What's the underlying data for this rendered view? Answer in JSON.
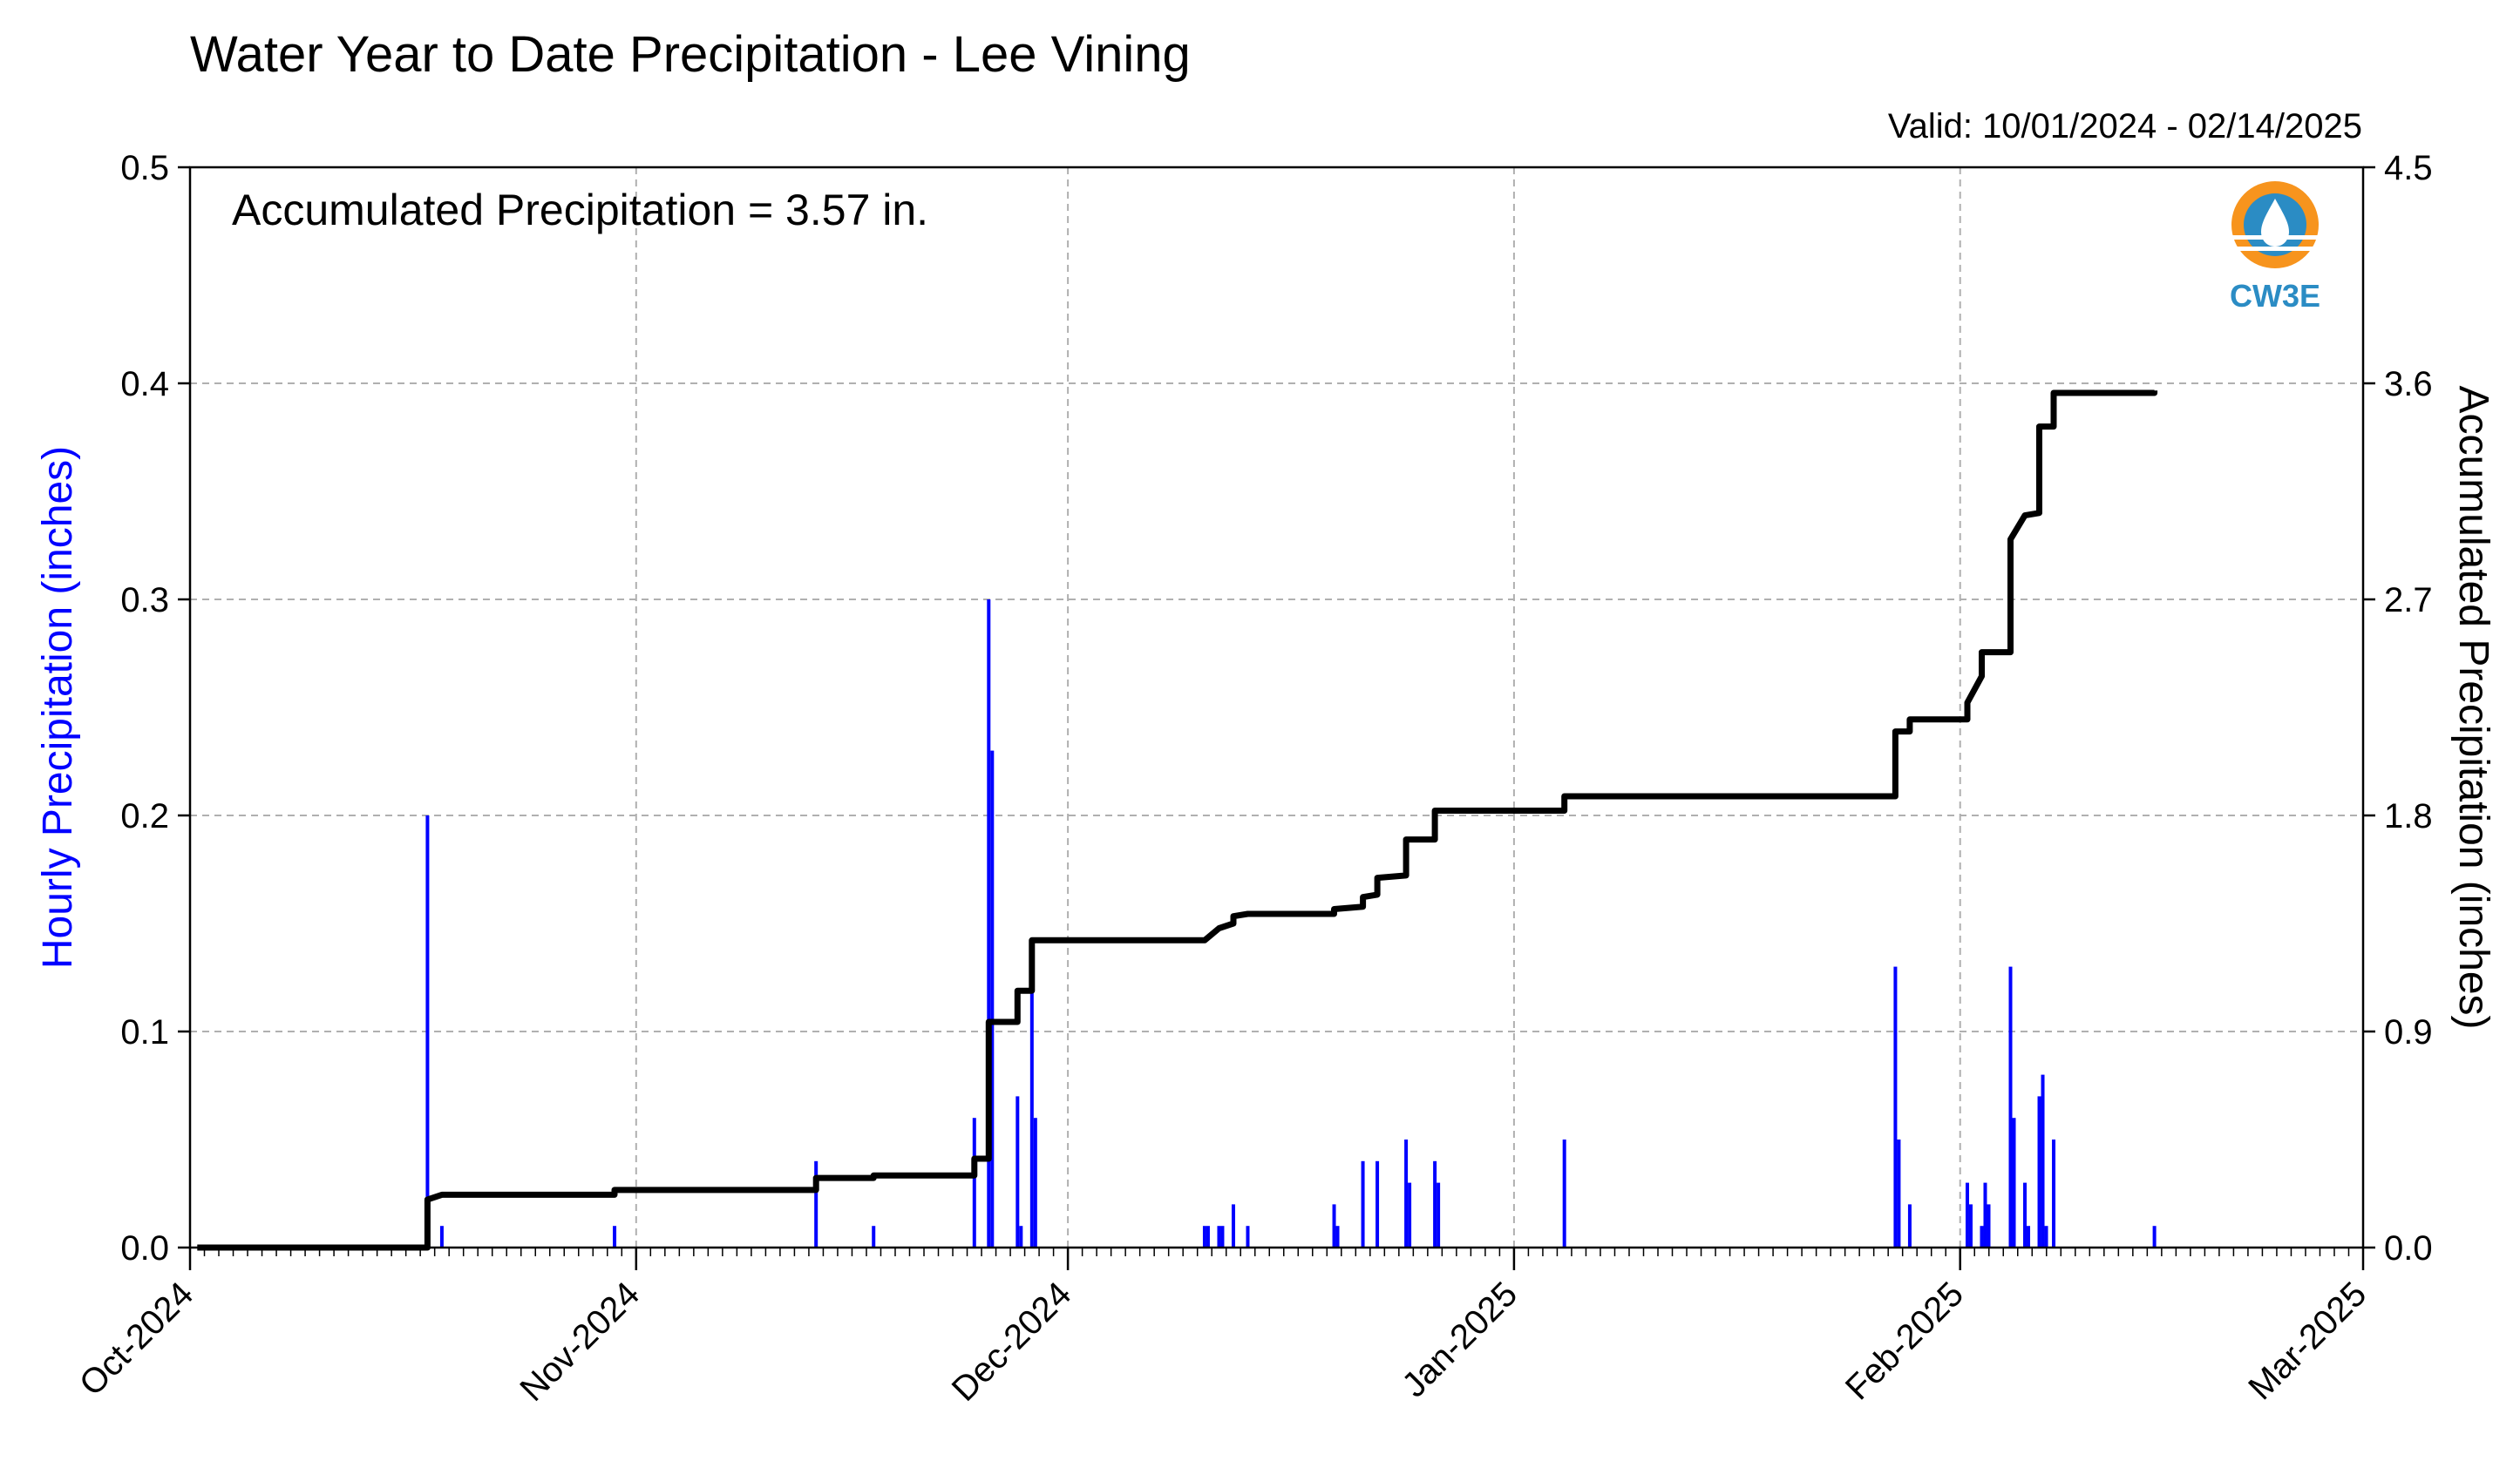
{
  "chart_data": {
    "type": "bar",
    "title": "Water Year to Date Precipitation - Lee Vining",
    "subtitle": "Valid: 10/01/2024 - 02/14/2025",
    "annotation": "Accumulated Precipitation = 3.57 in.",
    "logo_text": "CW3E",
    "ylabel_left": "Hourly Precipitation (inches)",
    "ylabel_right": "Accumulated Precipitation (inches)",
    "xlim": [
      "2024-10-01",
      "2025-03-01"
    ],
    "ylim_left": [
      0,
      0.5
    ],
    "ylim_right": [
      0,
      4.5
    ],
    "x_ticks": [
      {
        "date": "2024-10-01",
        "label": "Oct-2024"
      },
      {
        "date": "2024-11-01",
        "label": "Nov-2024"
      },
      {
        "date": "2024-12-01",
        "label": "Dec-2024"
      },
      {
        "date": "2025-01-01",
        "label": "Jan-2025"
      },
      {
        "date": "2025-02-01",
        "label": "Feb-2025"
      },
      {
        "date": "2025-03-01",
        "label": "Mar-2025"
      }
    ],
    "y_ticks_left": [
      "0.0",
      "0.1",
      "0.2",
      "0.3",
      "0.4",
      "0.5"
    ],
    "y_ticks_right": [
      "0.0",
      "0.9",
      "1.8",
      "2.7",
      "3.6",
      "4.5"
    ],
    "grid": true,
    "colors": {
      "hourly": "#0000ff",
      "accumulated": "#000000",
      "grid": "#b0b0b0",
      "logo_orange": "#f7941d",
      "logo_blue": "#2b8cc4"
    },
    "series": [
      {
        "name": "Hourly Precipitation",
        "axis": "left",
        "type": "bar",
        "points": [
          [
            "2024-10-17",
            0.2
          ],
          [
            "2024-10-18",
            0.01
          ],
          [
            "2024-10-30",
            0.01
          ],
          [
            "2024-11-13",
            0.04
          ],
          [
            "2024-11-17",
            0.01
          ],
          [
            "2024-11-24",
            0.06
          ],
          [
            "2024-11-25",
            0.3
          ],
          [
            "2024-11-25",
            0.23
          ],
          [
            "2024-11-27",
            0.07
          ],
          [
            "2024-11-27",
            0.01
          ],
          [
            "2024-11-28",
            0.12
          ],
          [
            "2024-11-28",
            0.06
          ],
          [
            "2024-12-10",
            0.01
          ],
          [
            "2024-12-10",
            0.01
          ],
          [
            "2024-12-11",
            0.01
          ],
          [
            "2024-12-11",
            0.01
          ],
          [
            "2024-12-12",
            0.02
          ],
          [
            "2024-12-13",
            0.01
          ],
          [
            "2024-12-19",
            0.02
          ],
          [
            "2024-12-19",
            0.01
          ],
          [
            "2024-12-21",
            0.04
          ],
          [
            "2024-12-22",
            0.04
          ],
          [
            "2024-12-24",
            0.05
          ],
          [
            "2024-12-24",
            0.03
          ],
          [
            "2024-12-26",
            0.04
          ],
          [
            "2024-12-26",
            0.03
          ],
          [
            "2025-01-04",
            0.05
          ],
          [
            "2025-01-27",
            0.13
          ],
          [
            "2025-01-27",
            0.05
          ],
          [
            "2025-01-28",
            0.02
          ],
          [
            "2025-02-01",
            0.03
          ],
          [
            "2025-02-01",
            0.02
          ],
          [
            "2025-02-02",
            0.01
          ],
          [
            "2025-02-02",
            0.03
          ],
          [
            "2025-02-02",
            0.02
          ],
          [
            "2025-02-04",
            0.13
          ],
          [
            "2025-02-04",
            0.06
          ],
          [
            "2025-02-05",
            0.03
          ],
          [
            "2025-02-05",
            0.01
          ],
          [
            "2025-02-06",
            0.07
          ],
          [
            "2025-02-06",
            0.08
          ],
          [
            "2025-02-06",
            0.01
          ],
          [
            "2025-02-07",
            0.05
          ],
          [
            "2025-02-14",
            0.01
          ]
        ]
      },
      {
        "name": "Accumulated Precipitation",
        "axis": "right",
        "type": "line",
        "points": [
          [
            "2024-10-01",
            0.0
          ],
          [
            "2024-10-17",
            0.0
          ],
          [
            "2024-10-17",
            0.2
          ],
          [
            "2024-10-18",
            0.22
          ],
          [
            "2024-10-30",
            0.22
          ],
          [
            "2024-10-30",
            0.24
          ],
          [
            "2024-11-13",
            0.24
          ],
          [
            "2024-11-13",
            0.29
          ],
          [
            "2024-11-17",
            0.29
          ],
          [
            "2024-11-17",
            0.3
          ],
          [
            "2024-11-24",
            0.3
          ],
          [
            "2024-11-24",
            0.37
          ],
          [
            "2024-11-25",
            0.37
          ],
          [
            "2024-11-25",
            0.94
          ],
          [
            "2024-11-27",
            0.94
          ],
          [
            "2024-11-27",
            1.07
          ],
          [
            "2024-11-28",
            1.07
          ],
          [
            "2024-11-28",
            1.28
          ],
          [
            "2024-12-10",
            1.28
          ],
          [
            "2024-12-11",
            1.33
          ],
          [
            "2024-12-12",
            1.35
          ],
          [
            "2024-12-12",
            1.38
          ],
          [
            "2024-12-13",
            1.39
          ],
          [
            "2024-12-19",
            1.39
          ],
          [
            "2024-12-19",
            1.41
          ],
          [
            "2024-12-21",
            1.42
          ],
          [
            "2024-12-21",
            1.46
          ],
          [
            "2024-12-22",
            1.47
          ],
          [
            "2024-12-22",
            1.54
          ],
          [
            "2024-12-24",
            1.55
          ],
          [
            "2024-12-24",
            1.7
          ],
          [
            "2024-12-26",
            1.7
          ],
          [
            "2024-12-26",
            1.82
          ],
          [
            "2025-01-04",
            1.82
          ],
          [
            "2025-01-04",
            1.88
          ],
          [
            "2025-01-27",
            1.88
          ],
          [
            "2025-01-27",
            2.15
          ],
          [
            "2025-01-28",
            2.15
          ],
          [
            "2025-01-28",
            2.2
          ],
          [
            "2025-02-01",
            2.2
          ],
          [
            "2025-02-01",
            2.27
          ],
          [
            "2025-02-02",
            2.38
          ],
          [
            "2025-02-02",
            2.48
          ],
          [
            "2025-02-04",
            2.48
          ],
          [
            "2025-02-04",
            2.95
          ],
          [
            "2025-02-05",
            3.05
          ],
          [
            "2025-02-06",
            3.06
          ],
          [
            "2025-02-06",
            3.4
          ],
          [
            "2025-02-06",
            3.42
          ],
          [
            "2025-02-07",
            3.42
          ],
          [
            "2025-02-07",
            3.56
          ],
          [
            "2025-02-14",
            3.56
          ],
          [
            "2025-02-14",
            3.57
          ]
        ]
      }
    ]
  }
}
